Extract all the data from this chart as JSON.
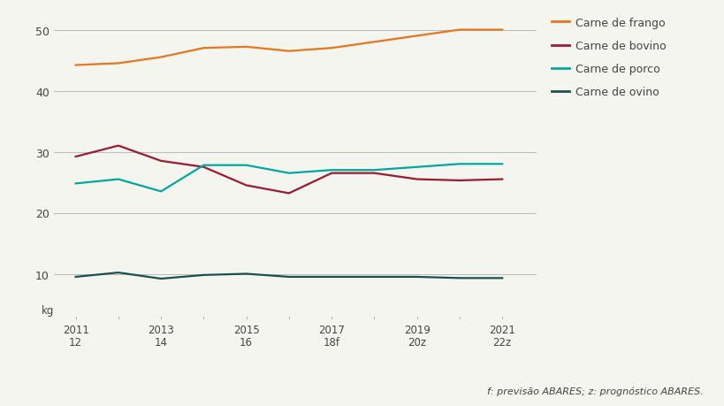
{
  "x_values": [
    2011,
    2012,
    2013,
    2014,
    2015,
    2016,
    2017,
    2018,
    2019,
    2020,
    2021
  ],
  "frango": [
    44.2,
    44.5,
    45.5,
    47.0,
    47.2,
    46.5,
    47.0,
    48.0,
    49.0,
    50.0,
    50.0
  ],
  "bovino": [
    29.2,
    31.0,
    28.5,
    27.5,
    24.5,
    23.2,
    26.5,
    26.5,
    25.5,
    25.3,
    25.5
  ],
  "porco": [
    24.8,
    25.5,
    23.5,
    27.8,
    27.8,
    26.5,
    27.0,
    27.0,
    27.5,
    28.0,
    28.0
  ],
  "ovino": [
    9.5,
    10.2,
    9.2,
    9.8,
    10.0,
    9.5,
    9.5,
    9.5,
    9.5,
    9.3,
    9.3
  ],
  "color_frango": "#E8761A",
  "color_bovino": "#9B1B30",
  "color_porco": "#00A8A0",
  "color_ovino": "#1A5050",
  "legend_labels": [
    "Carne de frango",
    "Carne de bovino",
    "Carne de porco",
    "Carne de ovino"
  ],
  "yticks": [
    10,
    20,
    30,
    40,
    50
  ],
  "ylim": [
    3,
    53
  ],
  "xlim": [
    2010.5,
    2021.8
  ],
  "ylabel": "kg",
  "x_tick_positions": [
    2011,
    2013,
    2015,
    2017,
    2019,
    2021
  ],
  "x_top_labels": [
    "2011",
    "2013",
    "2015",
    "2017",
    "2019",
    "2021"
  ],
  "x_bottom_labels": [
    "12",
    "14",
    "16",
    "18f",
    "20z",
    "22z"
  ],
  "footnote": "f: previsão ABARES; z: prognóstico ABARES.",
  "background_color": "#F5F5F0",
  "plot_bg_color": "#F5F5F0",
  "grid_color": "#BBBBBB",
  "line_width": 1.6,
  "axis_line_color": "#AAAAAA"
}
